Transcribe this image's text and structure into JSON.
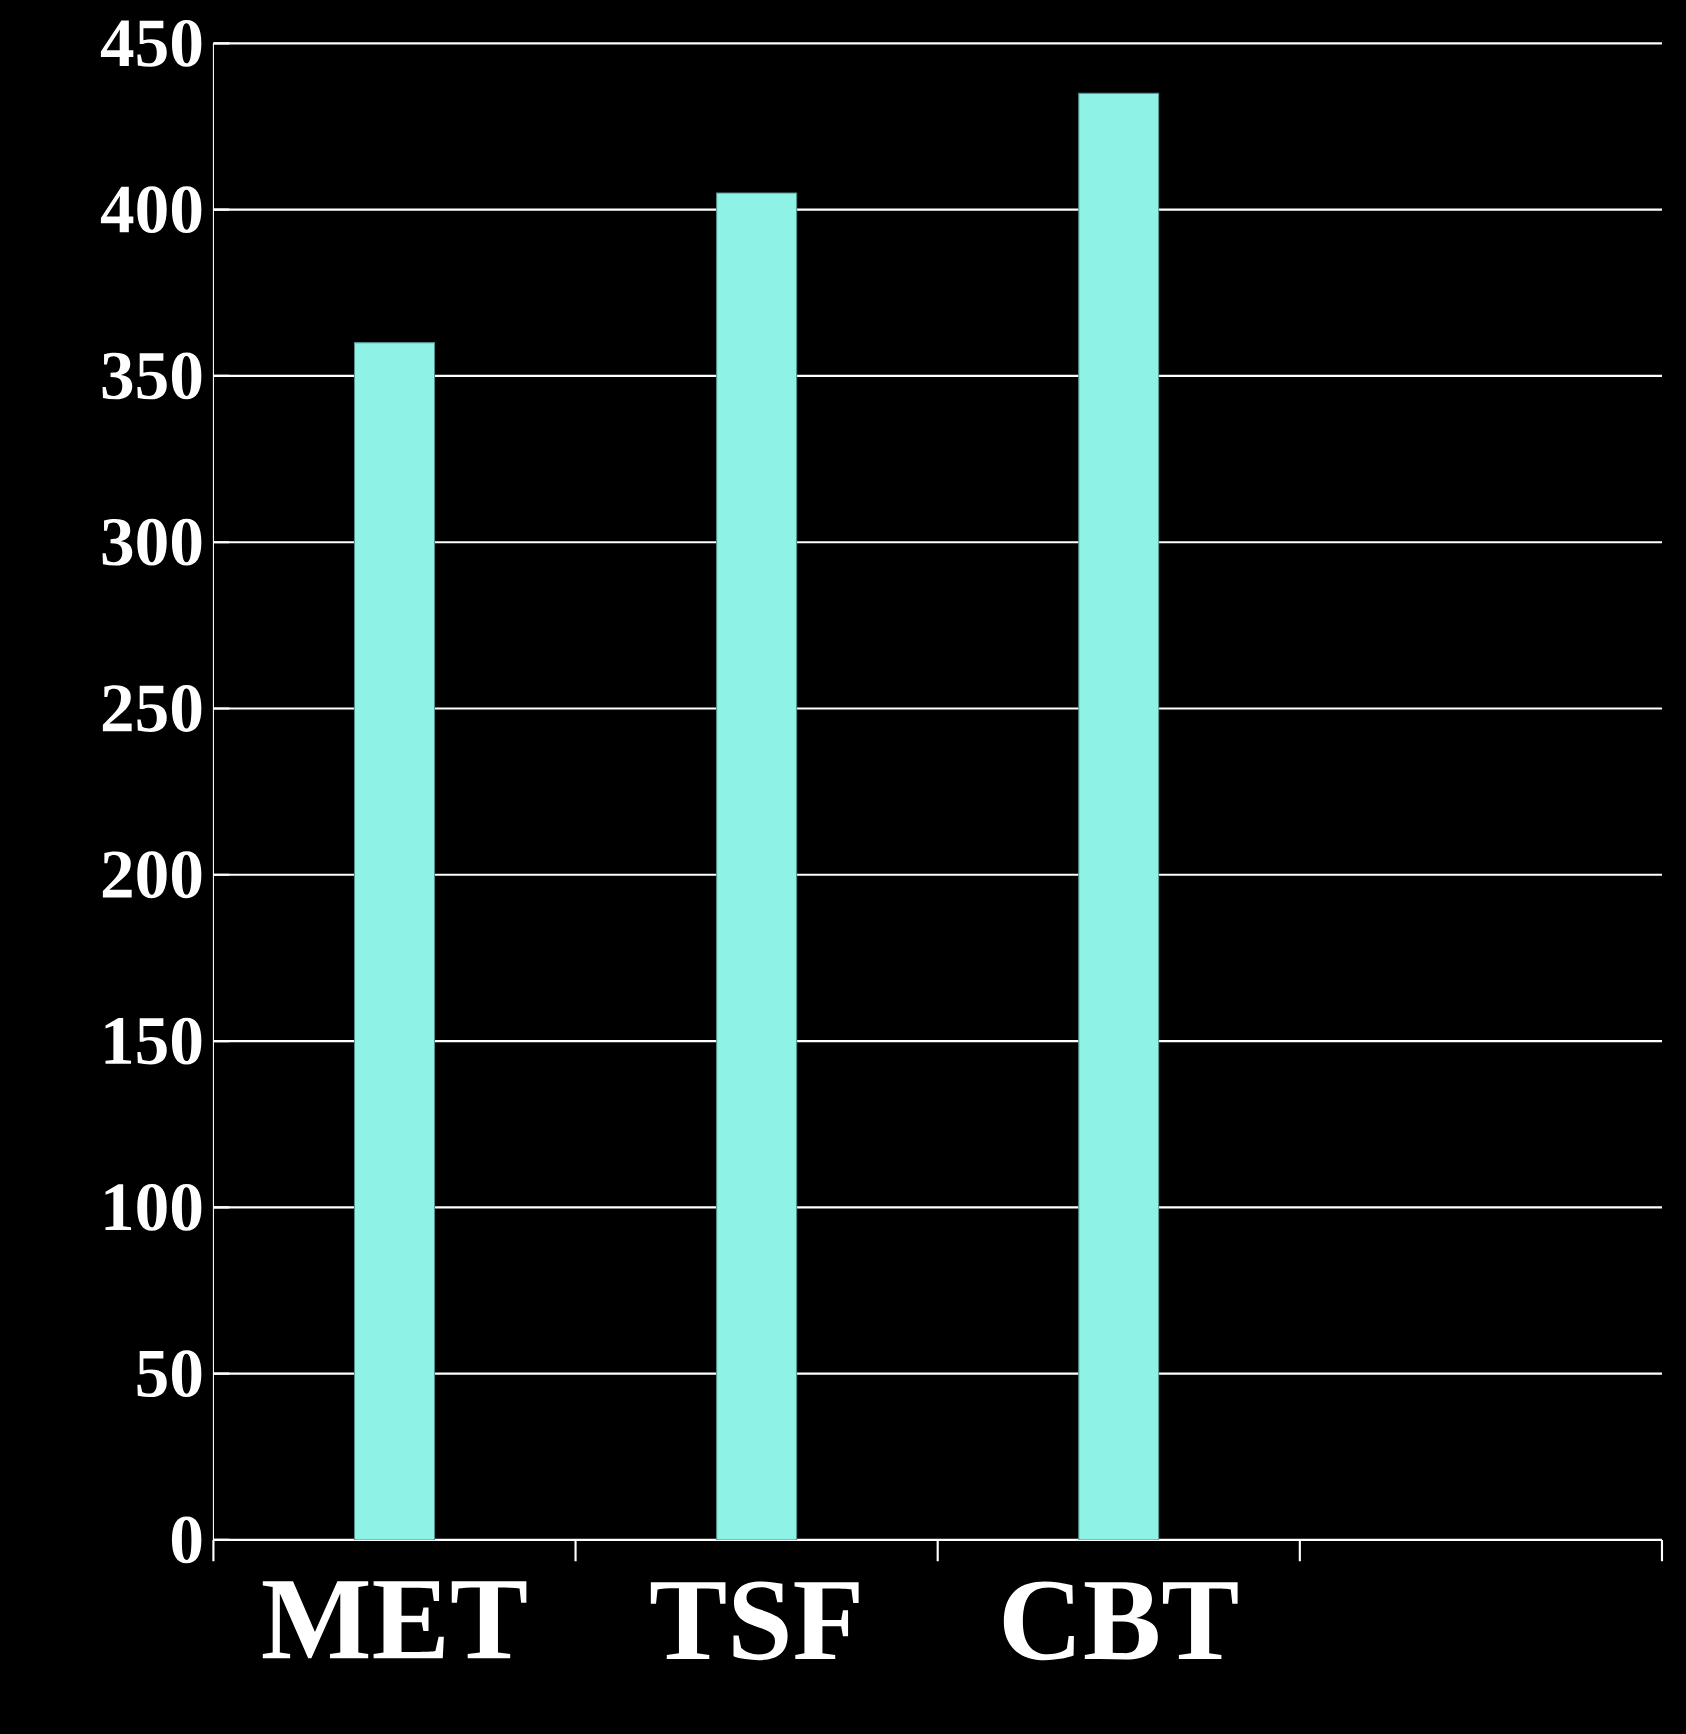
{
  "chart_data": {
    "type": "bar",
    "categories": [
      "MET",
      "TSF",
      "CBT",
      null
    ],
    "values": [
      360,
      405,
      435,
      null
    ],
    "color": "#8ef2e6",
    "ylim": [
      0,
      450
    ],
    "yticks": [
      0,
      50,
      100,
      150,
      200,
      250,
      300,
      350,
      400,
      450
    ],
    "grid": "y"
  }
}
